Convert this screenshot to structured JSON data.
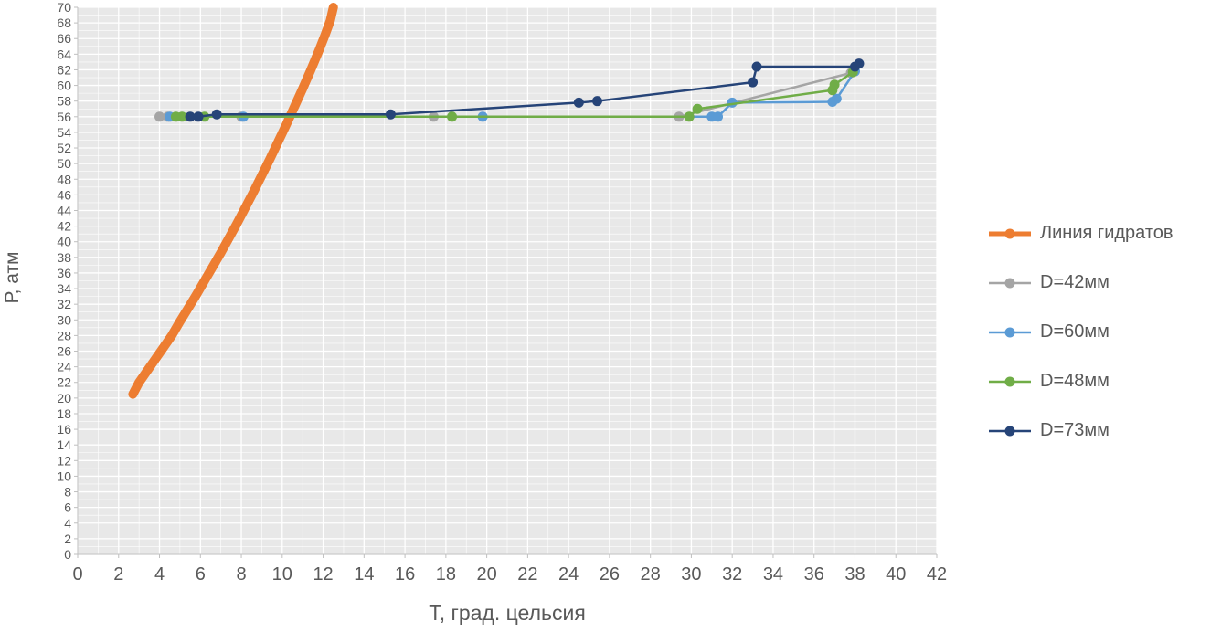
{
  "chart_data": {
    "type": "line",
    "title": "",
    "xlabel": "Т, град. цельсия",
    "ylabel": "Р, атм",
    "xlim": [
      0,
      42
    ],
    "ylim": [
      0,
      70
    ],
    "x_tick_step": 2,
    "y_tick_step": 2,
    "grid": true,
    "legend_position": "right",
    "plot_bg_color": "#e8e8e8",
    "axis_text_color": "#595959",
    "series": [
      {
        "id": "hydrate-line",
        "name": "Линия гидратов",
        "color": "#ED7D31",
        "line_width": 10,
        "marker": false,
        "points": [
          [
            2.7,
            20.5
          ],
          [
            3.0,
            22
          ],
          [
            3.4,
            23.5
          ],
          [
            3.8,
            25
          ],
          [
            4.2,
            26.5
          ],
          [
            4.6,
            28
          ],
          [
            5.0,
            29.8
          ],
          [
            5.4,
            31.5
          ],
          [
            5.8,
            33.2
          ],
          [
            6.2,
            35
          ],
          [
            6.6,
            36.8
          ],
          [
            7.0,
            38.6
          ],
          [
            7.4,
            40.5
          ],
          [
            7.8,
            42.4
          ],
          [
            8.2,
            44.4
          ],
          [
            8.6,
            46.4
          ],
          [
            9.0,
            48.5
          ],
          [
            9.4,
            50.6
          ],
          [
            9.8,
            52.8
          ],
          [
            10.2,
            55.0
          ],
          [
            10.6,
            57.3
          ],
          [
            11.0,
            59.6
          ],
          [
            11.4,
            62.0
          ],
          [
            11.8,
            64.5
          ],
          [
            12.1,
            66.5
          ],
          [
            12.35,
            68.3
          ],
          [
            12.5,
            70
          ]
        ]
      },
      {
        "id": "d42",
        "name": "D=42мм",
        "color": "#A5A5A5",
        "line_width": 2.5,
        "marker": true,
        "points": [
          [
            4.0,
            56
          ],
          [
            4.4,
            56
          ],
          [
            8.0,
            56
          ],
          [
            17.4,
            56
          ],
          [
            29.4,
            56
          ],
          [
            37.8,
            61.6
          ]
        ]
      },
      {
        "id": "d60",
        "name": "D=60мм",
        "color": "#5B9BD5",
        "line_width": 2.5,
        "marker": true,
        "points": [
          [
            4.5,
            56
          ],
          [
            8.1,
            56
          ],
          [
            19.8,
            56
          ],
          [
            31.0,
            56
          ],
          [
            31.3,
            56
          ],
          [
            32.0,
            57.8
          ],
          [
            36.9,
            57.9
          ],
          [
            37.1,
            58.3
          ],
          [
            38.0,
            61.8
          ]
        ]
      },
      {
        "id": "d48",
        "name": "D=48мм",
        "color": "#70AD47",
        "line_width": 2.5,
        "marker": true,
        "points": [
          [
            4.8,
            56
          ],
          [
            5.1,
            56
          ],
          [
            6.2,
            56
          ],
          [
            18.3,
            56
          ],
          [
            29.9,
            56
          ],
          [
            30.3,
            57.0
          ],
          [
            36.9,
            59.4
          ],
          [
            37.0,
            60.1
          ],
          [
            37.9,
            61.7
          ]
        ]
      },
      {
        "id": "d73",
        "name": "D=73мм",
        "color": "#264478",
        "line_width": 2.5,
        "marker": true,
        "points": [
          [
            5.5,
            56
          ],
          [
            5.9,
            56
          ],
          [
            6.8,
            56.3
          ],
          [
            15.3,
            56.3
          ],
          [
            24.5,
            57.8
          ],
          [
            25.4,
            58.0
          ],
          [
            33.0,
            60.4
          ],
          [
            33.2,
            62.4
          ],
          [
            38.0,
            62.4
          ],
          [
            38.2,
            62.8
          ]
        ]
      }
    ]
  }
}
